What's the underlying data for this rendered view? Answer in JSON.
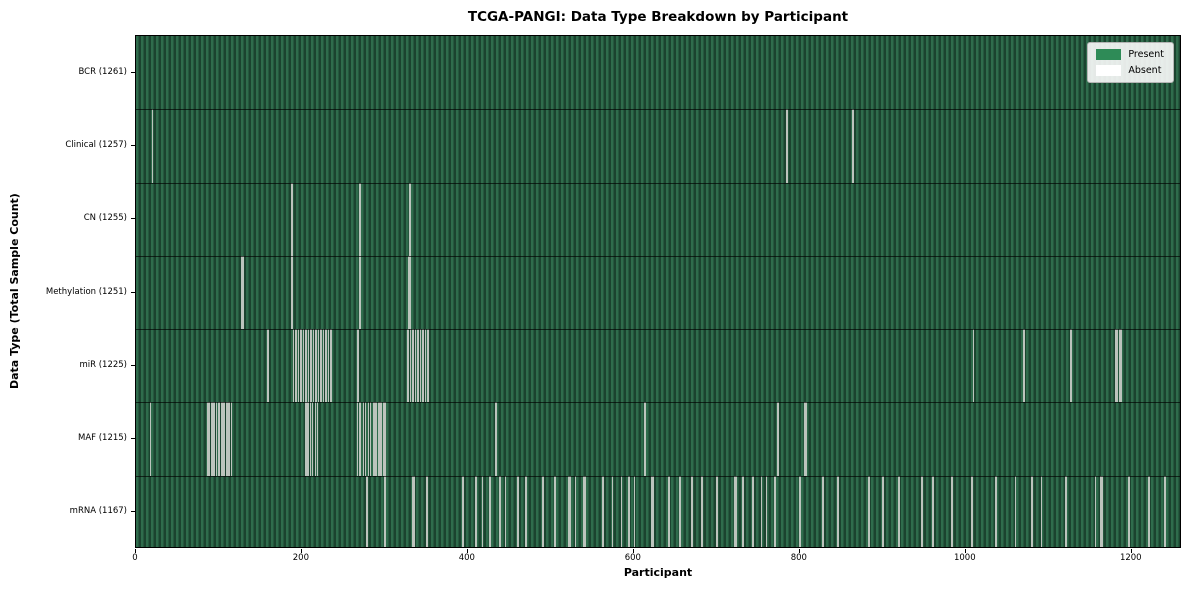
{
  "chart_data": {
    "type": "heatmap",
    "title": "TCGA-PANGI: Data Type Breakdown by Participant",
    "xlabel": "Participant",
    "ylabel": "Data Type (Total Sample Count)",
    "x_ticks": [
      0,
      200,
      400,
      600,
      800,
      1000,
      1200
    ],
    "n_participants": 1261,
    "grid": false,
    "legend": {
      "position": "upper right",
      "entries": [
        {
          "label": "Present",
          "color": "#2e8b57"
        },
        {
          "label": "Absent",
          "color": "#ffffff"
        }
      ]
    },
    "colors": {
      "present": "#2e8b57",
      "present_stripe_light": "#2f6c4c",
      "present_stripe_dark": "#1b432f",
      "absent_line": "#bcc4bd",
      "axis": "#000000"
    },
    "rows": [
      {
        "label": "BCR (1261)",
        "data_type": "BCR",
        "present_count": 1261,
        "absent_participants": []
      },
      {
        "label": "Clinical (1257)",
        "data_type": "Clinical",
        "present_count": 1257,
        "absent_participants": [
          20,
          784,
          785,
          864
        ]
      },
      {
        "label": "CN (1255)",
        "data_type": "CN",
        "present_count": 1255,
        "absent_participants": [
          188,
          189,
          269,
          270,
          330,
          331
        ]
      },
      {
        "label": "Methylation (1251)",
        "data_type": "Methylation",
        "present_count": 1251,
        "absent_participants": [
          128,
          129,
          188,
          189,
          269,
          270,
          271,
          329,
          330,
          331
        ]
      },
      {
        "label": "miR (1225)",
        "data_type": "miR",
        "present_count": 1225,
        "absent_participants": [
          159,
          190,
          193,
          196,
          199,
          202,
          205,
          208,
          211,
          214,
          217,
          220,
          223,
          226,
          229,
          232,
          235,
          267,
          268,
          328,
          331,
          334,
          337,
          340,
          343,
          346,
          349,
          352,
          1009,
          1070,
          1126,
          1127,
          1181,
          1183,
          1185,
          1187
        ]
      },
      {
        "label": "MAF (1215)",
        "data_type": "MAF",
        "present_count": 1215,
        "absent_participants": [
          18,
          87,
          89,
          91,
          93,
          95,
          97,
          100,
          103,
          105,
          107,
          109,
          111,
          113,
          115,
          204,
          206,
          208,
          210,
          213,
          216,
          219,
          267,
          269,
          271,
          274,
          277,
          280,
          283,
          286,
          288,
          290,
          292,
          294,
          296,
          298,
          300,
          433,
          434,
          613,
          614,
          773,
          774,
          806,
          807,
          808
        ]
      },
      {
        "label": "mRNA (1167)",
        "data_type": "mRNA",
        "present_count": 1167,
        "absent_participants": [
          278,
          279,
          300,
          301,
          334,
          335,
          350,
          351,
          394,
          409,
          410,
          418,
          426,
          427,
          438,
          439,
          445,
          460,
          461,
          470,
          490,
          491,
          505,
          506,
          522,
          523,
          530,
          540,
          541,
          562,
          563,
          574,
          585,
          594,
          595,
          601,
          622,
          623,
          642,
          643,
          655,
          656,
          670,
          671,
          682,
          700,
          701,
          722,
          723,
          731,
          732,
          743,
          744,
          754,
          760,
          770,
          771,
          800,
          801,
          827,
          828,
          845,
          846,
          883,
          884,
          900,
          901,
          919,
          920,
          947,
          948,
          960,
          961,
          983,
          984,
          1007,
          1008,
          1036,
          1037,
          1060,
          1079,
          1080,
          1091,
          1120,
          1121,
          1156,
          1163,
          1164,
          1196,
          1197,
          1220,
          1221,
          1240,
          1241
        ]
      }
    ]
  }
}
